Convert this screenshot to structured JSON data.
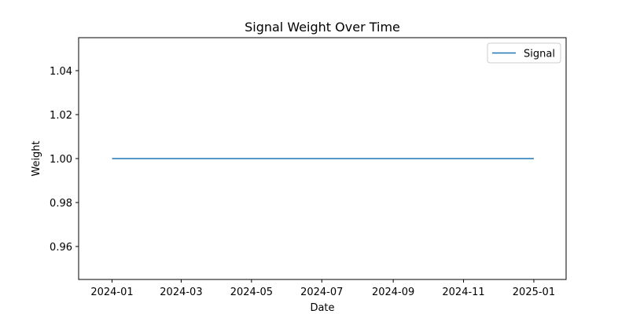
{
  "chart_data": {
    "type": "line",
    "title": "Signal Weight Over Time",
    "xlabel": "Date",
    "ylabel": "Weight",
    "x_type": "date",
    "xlim": [
      "2023-12-03",
      "2025-01-29"
    ],
    "ylim": [
      0.945,
      1.055
    ],
    "x_ticks": [
      "2024-01-01",
      "2024-03-01",
      "2024-05-01",
      "2024-07-01",
      "2024-09-01",
      "2024-11-01",
      "2025-01-01"
    ],
    "x_tick_labels": [
      "2024-01",
      "2024-03",
      "2024-05",
      "2024-07",
      "2024-09",
      "2024-11",
      "2025-01"
    ],
    "y_ticks": [
      0.96,
      0.98,
      1.0,
      1.02,
      1.04
    ],
    "y_tick_labels": [
      "0.96",
      "0.98",
      "1.00",
      "1.02",
      "1.04"
    ],
    "grid": false,
    "legend": "top-right",
    "series": [
      {
        "name": "Signal",
        "color": "#1f77b4",
        "x": [
          "2024-01-01",
          "2025-01-01"
        ],
        "y": [
          1.0,
          1.0
        ]
      }
    ]
  }
}
